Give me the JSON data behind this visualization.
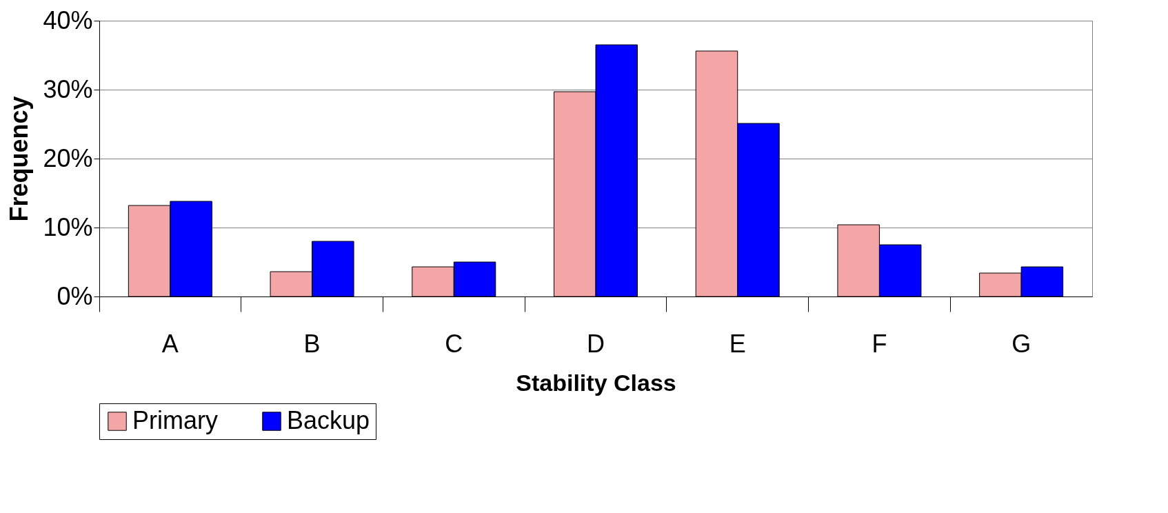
{
  "chart_data": {
    "type": "bar",
    "xlabel": "Stability Class",
    "ylabel": "Frequency",
    "categories": [
      "A",
      "B",
      "C",
      "D",
      "E",
      "F",
      "G"
    ],
    "series": [
      {
        "name": "Primary",
        "color": "#f4a6a6",
        "values": [
          13.2,
          3.6,
          4.3,
          29.7,
          35.6,
          10.4,
          3.4
        ]
      },
      {
        "name": "Backup",
        "color": "#0000ff",
        "values": [
          13.8,
          8.0,
          5.0,
          36.5,
          25.1,
          7.5,
          4.3
        ]
      }
    ],
    "ylim": [
      0,
      40
    ],
    "yticks": [
      {
        "value": 0,
        "label": "0%"
      },
      {
        "value": 10,
        "label": "10%"
      },
      {
        "value": 20,
        "label": "20%"
      },
      {
        "value": 30,
        "label": "30%"
      },
      {
        "value": 40,
        "label": "40%"
      }
    ],
    "grid": "y",
    "legend": "bottom"
  }
}
